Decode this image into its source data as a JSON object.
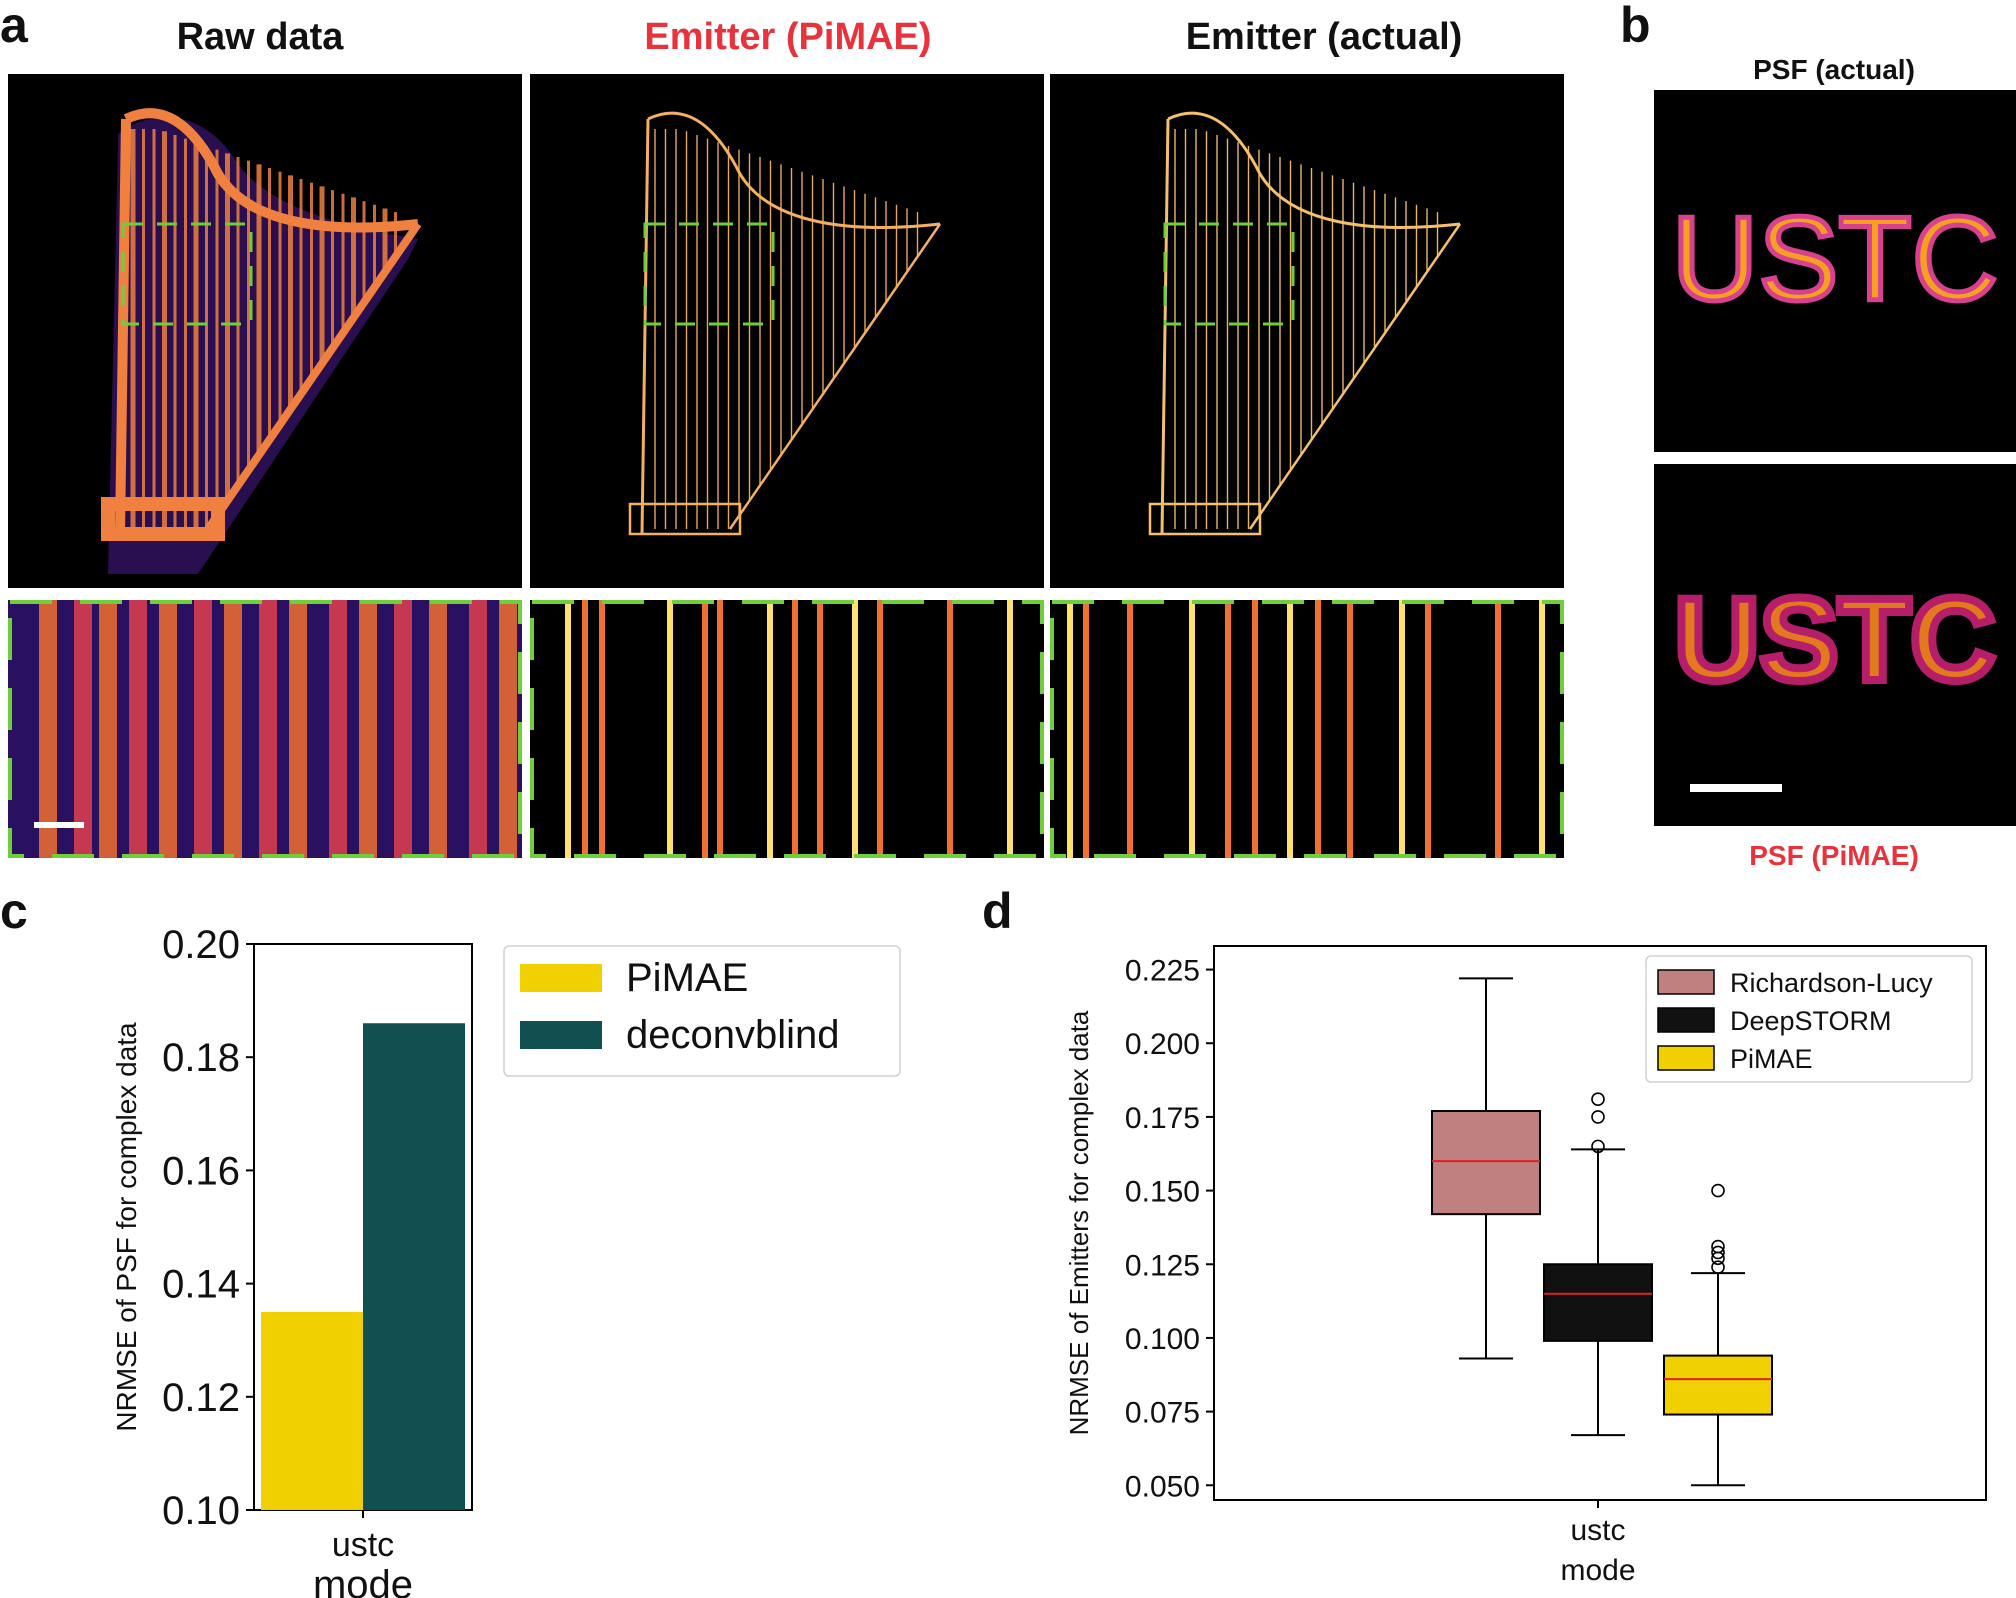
{
  "panel_a": {
    "letter": "a",
    "titles": [
      {
        "text": "Raw data",
        "color": "#111111"
      },
      {
        "text": "Emitter (PiMAE)",
        "color": "#e8323c"
      },
      {
        "text": "Emitter (actual)",
        "color": "#111111"
      }
    ]
  },
  "panel_b": {
    "letter": "b",
    "top_label": "PSF (actual)",
    "bottom_label": "PSF (PiMAE)",
    "bottom_label_color": "#e8323c",
    "psf_text_top": "USTC",
    "psf_text_bottom": "USTC"
  },
  "colors": {
    "accent_red": "#e8323c",
    "zoom_box_green": "#6fcf3a",
    "pimae_yellow": "#f0d000",
    "deconvblind_teal": "#115050",
    "rl_pink": "#c08080",
    "deepstorm_black": "#111111",
    "median_red": "#e02020"
  },
  "chart_data": [
    {
      "panel": "c",
      "type": "bar",
      "categories": [
        "ustc"
      ],
      "series": [
        {
          "name": "PiMAE",
          "values": [
            0.135
          ],
          "color": "#f0d000"
        },
        {
          "name": "deconvblind",
          "values": [
            0.186
          ],
          "color": "#115050"
        }
      ],
      "xlabel": "mode",
      "ylabel": "NRMSE of PSF for complex data",
      "ylim": [
        0.1,
        0.2
      ],
      "yticks": [
        "0.10",
        "0.12",
        "0.14",
        "0.16",
        "0.18",
        "0.20"
      ],
      "legend_position": "right-outside-top",
      "grid": false
    },
    {
      "panel": "d",
      "type": "box",
      "categories": [
        "ustc"
      ],
      "series": [
        {
          "name": "Richardson-Lucy",
          "color": "#c08080",
          "whisker_low": 0.093,
          "q1": 0.142,
          "median": 0.16,
          "q3": 0.177,
          "whisker_high": 0.222,
          "outliers": []
        },
        {
          "name": "DeepSTORM",
          "color": "#111111",
          "whisker_low": 0.067,
          "q1": 0.099,
          "median": 0.115,
          "q3": 0.125,
          "whisker_high": 0.164,
          "outliers": [
            0.165,
            0.175,
            0.181
          ]
        },
        {
          "name": "PiMAE",
          "color": "#f0d000",
          "whisker_low": 0.05,
          "q1": 0.074,
          "median": 0.086,
          "q3": 0.094,
          "whisker_high": 0.122,
          "outliers": [
            0.124,
            0.127,
            0.129,
            0.131,
            0.15
          ]
        }
      ],
      "xlabel": "mode",
      "ylabel": "NRMSE of Emitters for complex data",
      "ylim": [
        0.045,
        0.233
      ],
      "yticks": [
        "0.050",
        "0.075",
        "0.100",
        "0.125",
        "0.150",
        "0.175",
        "0.200",
        "0.225"
      ],
      "legend_position": "top-right",
      "grid": false
    }
  ]
}
